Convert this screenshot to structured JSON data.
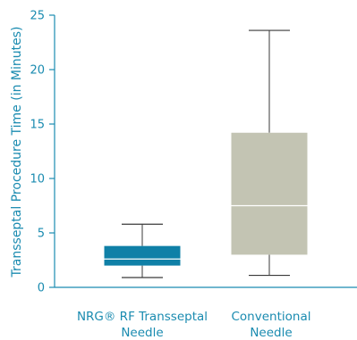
{
  "chart_data": {
    "type": "boxplot",
    "title": "",
    "xlabel": "",
    "ylabel": "Transseptal Procedure Time (in Minutes)",
    "ylim": [
      0,
      25
    ],
    "yticks": [
      0,
      5,
      10,
      15,
      20,
      25
    ],
    "grid": false,
    "categories": [
      {
        "line1": "NRG® RF Transseptal",
        "line2": "Needle"
      },
      {
        "line1": "Conventional",
        "line2": "Needle"
      }
    ],
    "boxes": [
      {
        "min": 0.9,
        "q1": 2.0,
        "median": 2.6,
        "q3": 3.8,
        "max": 5.8
      },
      {
        "min": 1.1,
        "q1": 3.0,
        "median": 7.5,
        "q3": 14.2,
        "max": 23.6
      }
    ]
  },
  "colors": {
    "axis": "#1a8bb0",
    "box_nrg": "#0f80a7",
    "box_conventional": "#c3c4b3",
    "whisker": "#3a3a3a",
    "median": "#ffffff"
  }
}
